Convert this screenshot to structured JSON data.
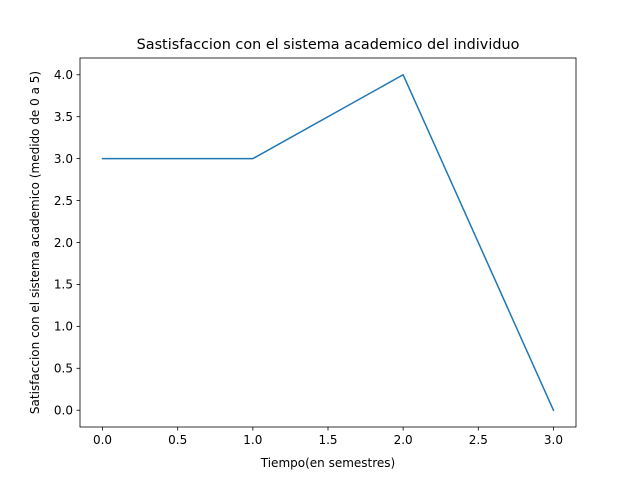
{
  "chart_data": {
    "type": "line",
    "title": "Sastisfaccion con el sistema academico del individuo",
    "xlabel": "Tiempo(en semestres)",
    "ylabel": "Satisfaccion con el sistema academico (medido de 0 a 5)",
    "x": [
      0.0,
      1.0,
      2.0,
      3.0
    ],
    "series": [
      {
        "values": [
          3.0,
          3.0,
          4.0,
          0.0
        ],
        "color": "#1f77b4"
      }
    ],
    "xlim": [
      -0.15,
      3.15
    ],
    "ylim": [
      -0.2,
      4.2
    ],
    "x_ticks": [
      "0.0",
      "0.5",
      "1.0",
      "1.5",
      "2.0",
      "2.5",
      "3.0"
    ],
    "y_ticks": [
      "0.0",
      "0.5",
      "1.0",
      "1.5",
      "2.0",
      "2.5",
      "3.0",
      "3.5",
      "4.0"
    ],
    "grid": false
  }
}
